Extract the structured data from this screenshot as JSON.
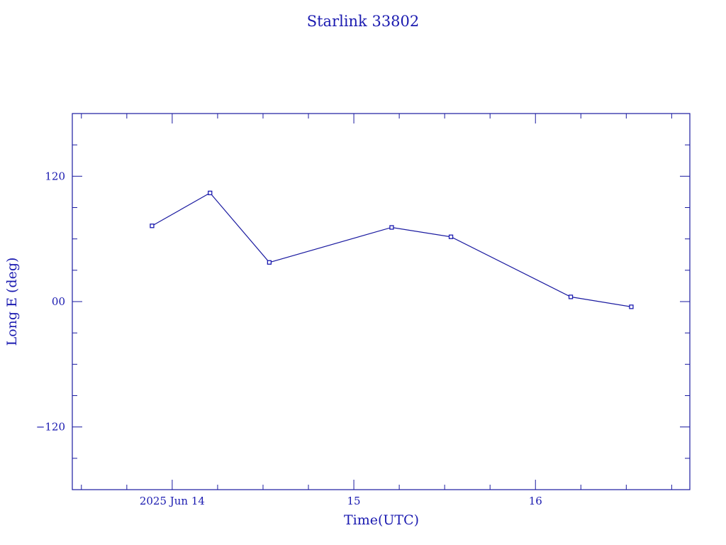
{
  "chart_data": {
    "type": "line",
    "title": "Starlink 33802",
    "xlabel": "Time(UTC)",
    "ylabel": "Long E (deg)",
    "color": "#1a1ab0",
    "ylim": [
      -180,
      180
    ],
    "xlim": [
      "2025-06-13T10:48",
      "2025-06-16T20:24"
    ],
    "x_ticks": [
      {
        "x": "2025-06-14T00:00",
        "label": "2025 Jun 14"
      },
      {
        "x": "2025-06-15T00:00",
        "label": "15"
      },
      {
        "x": "2025-06-16T00:00",
        "label": "16"
      }
    ],
    "y_ticks": [
      {
        "y": 120,
        "label": "120"
      },
      {
        "y": 0,
        "label": "00"
      },
      {
        "y": -120,
        "label": "−120"
      }
    ],
    "series": [
      {
        "points": [
          {
            "x": "2025-06-13T21:20",
            "y": 72.5
          },
          {
            "x": "2025-06-14T05:00",
            "y": 104
          },
          {
            "x": "2025-06-14T12:50",
            "y": 37.5
          },
          {
            "x": "2025-06-15T05:00",
            "y": 71
          },
          {
            "x": "2025-06-15T12:50",
            "y": 62
          },
          {
            "x": "2025-06-16T04:40",
            "y": 4.5
          },
          {
            "x": "2025-06-16T12:40",
            "y": -5
          }
        ]
      }
    ],
    "grid": false,
    "legend": "none"
  }
}
